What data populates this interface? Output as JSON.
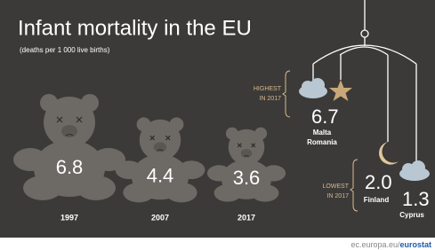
{
  "title": "Infant mortality in the EU",
  "subtitle": "(deaths per 1 000 live births)",
  "years": [
    {
      "label": "1997",
      "value": "6.8"
    },
    {
      "label": "2007",
      "value": "4.4"
    },
    {
      "label": "2017",
      "value": "3.6"
    }
  ],
  "highest": {
    "label": [
      "HIGHEST",
      "IN 2017"
    ],
    "value": "6.7",
    "countries": [
      "Malta",
      "Romania"
    ]
  },
  "lowest": {
    "label": [
      "LOWEST",
      "IN 2017"
    ],
    "items": [
      {
        "value": "2.0",
        "country": "Finland"
      },
      {
        "value": "1.3",
        "country": "Cyprus"
      }
    ]
  },
  "source": {
    "prefix": "ec.europa.eu/",
    "brand": "eurostat"
  }
}
